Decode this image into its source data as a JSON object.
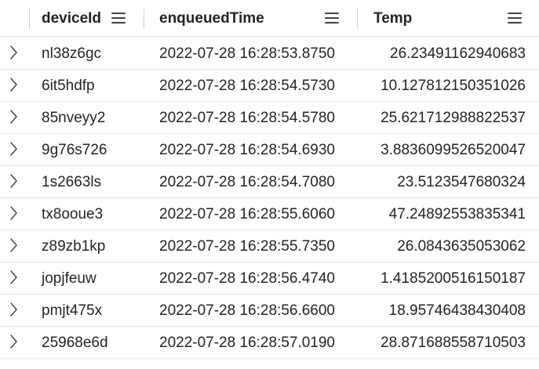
{
  "columns": [
    {
      "label": "deviceId",
      "menu_icon": "hamburger-menu-icon"
    },
    {
      "label": "enqueuedTime",
      "menu_icon": "hamburger-menu-icon"
    },
    {
      "label": "Temp",
      "menu_icon": "hamburger-menu-icon"
    }
  ],
  "rows": [
    {
      "deviceId": "nl38z6gc",
      "enqueuedTime": "2022-07-28 16:28:53.8750",
      "Temp": "26.23491162940683"
    },
    {
      "deviceId": "6it5hdfp",
      "enqueuedTime": "2022-07-28 16:28:54.5730",
      "Temp": "10.127812150351026"
    },
    {
      "deviceId": "85nveyy2",
      "enqueuedTime": "2022-07-28 16:28:54.5780",
      "Temp": "25.621712988822537"
    },
    {
      "deviceId": "9g76s726",
      "enqueuedTime": "2022-07-28 16:28:54.6930",
      "Temp": "3.8836099526520047"
    },
    {
      "deviceId": "1s2663ls",
      "enqueuedTime": "2022-07-28 16:28:54.7080",
      "Temp": "23.5123547680324"
    },
    {
      "deviceId": "tx8ooue3",
      "enqueuedTime": "2022-07-28 16:28:55.6060",
      "Temp": "47.24892553835341"
    },
    {
      "deviceId": "z89zb1kp",
      "enqueuedTime": "2022-07-28 16:28:55.7350",
      "Temp": "26.0843635053062"
    },
    {
      "deviceId": "jopjfeuw",
      "enqueuedTime": "2022-07-28 16:28:56.4740",
      "Temp": "1.4185200516150187"
    },
    {
      "deviceId": "pmjt475x",
      "enqueuedTime": "2022-07-28 16:28:56.6600",
      "Temp": "18.95746438430408"
    },
    {
      "deviceId": "25968e6d",
      "enqueuedTime": "2022-07-28 16:28:57.0190",
      "Temp": "28.871688558710503"
    }
  ],
  "colors": {
    "text": "#242424",
    "row_divider": "#e5e5e5",
    "chevron": "#424242"
  }
}
